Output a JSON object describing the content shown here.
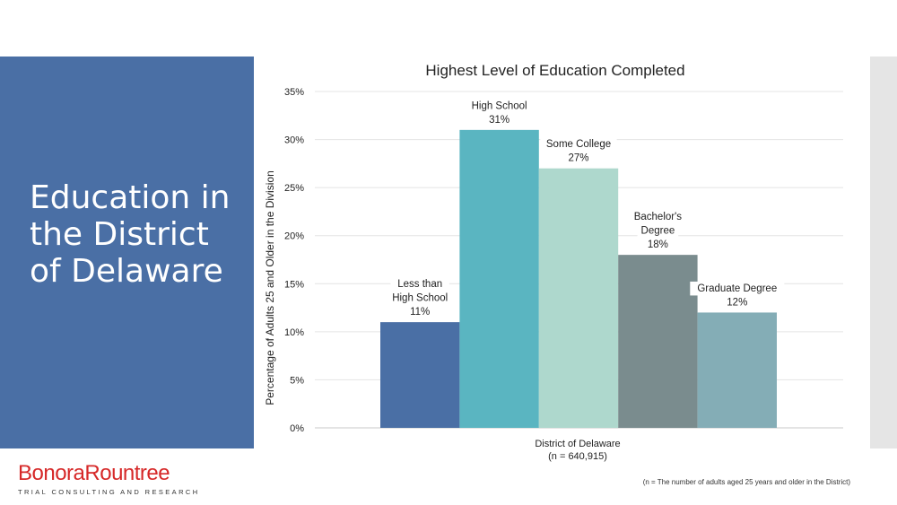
{
  "slide": {
    "title": "Education in the District of Delaware",
    "footnote": "(n = The number of adults aged 25 years and older in the District)"
  },
  "logo": {
    "name_part1": "Bonora",
    "name_part2": "Rountree",
    "tagline": "TRIAL CONSULTING AND RESEARCH"
  },
  "colors": {
    "panel": "#4a6fa5",
    "logo_red": "#d62828"
  },
  "chart_data": {
    "type": "bar",
    "title": "Highest Level of Education Completed",
    "xlabel": "District of Delaware",
    "xlabel_sub": "(n = 640,915)",
    "ylabel": "Percentage of  Adults 25 and Older in the Division",
    "ylim": [
      0,
      35
    ],
    "yticks": [
      "0%",
      "5%",
      "10%",
      "15%",
      "20%",
      "25%",
      "30%",
      "35%"
    ],
    "grid": true,
    "series": [
      {
        "label_lines": [
          "Less than",
          "High School"
        ],
        "value": 11,
        "value_label": "11%",
        "color": "#4a6fa5"
      },
      {
        "label_lines": [
          "High School"
        ],
        "value": 31,
        "value_label": "31%",
        "color": "#5ab5c1"
      },
      {
        "label_lines": [
          "Some College"
        ],
        "value": 27,
        "value_label": "27%",
        "color": "#aed8cd"
      },
      {
        "label_lines": [
          "Bachelor's",
          "Degree"
        ],
        "value": 18,
        "value_label": "18%",
        "color": "#7a8c8e"
      },
      {
        "label_lines": [
          "Graduate Degree"
        ],
        "value": 12,
        "value_label": "12%",
        "color": "#84adb6"
      }
    ]
  }
}
